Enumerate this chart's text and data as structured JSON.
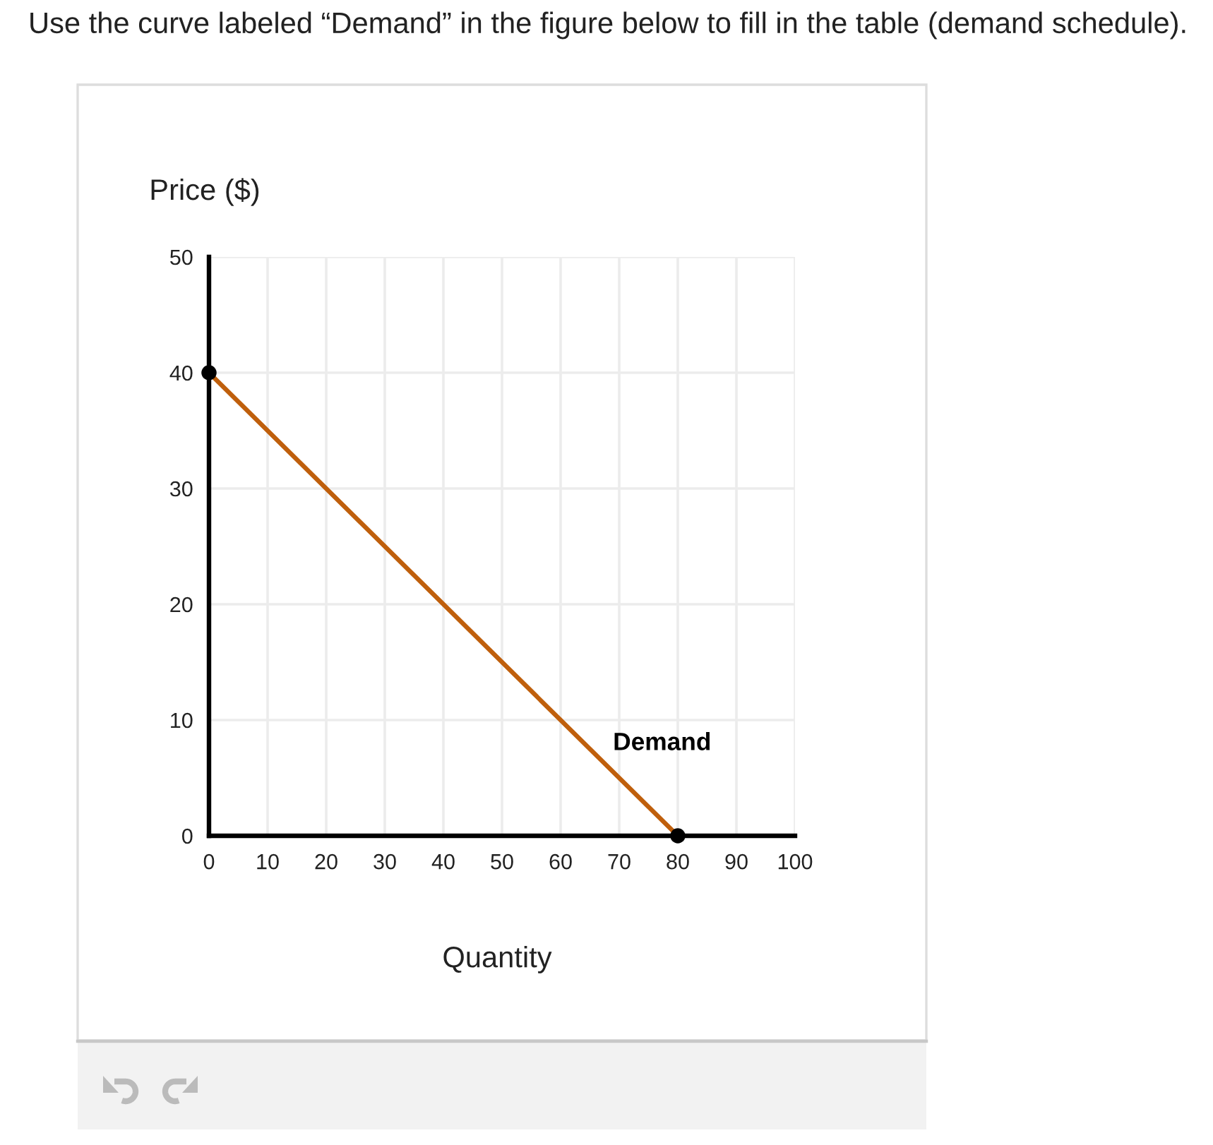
{
  "chart_data": {
    "type": "line",
    "title": "Use the curve labeled “Demand” in the figure below to fill in the table (demand schedule).",
    "xlabel": "Quantity",
    "ylabel": "Price ($)",
    "series": [
      {
        "name": "Demand",
        "color": "#bf5f0c",
        "colors": [
          "#000000",
          "#000000"
        ],
        "x": [
          0,
          80
        ],
        "values": [
          40,
          0
        ]
      }
    ],
    "xlim": [
      0,
      100
    ],
    "ylim": [
      0,
      50
    ],
    "xticks": [
      0,
      10,
      20,
      30,
      40,
      50,
      60,
      70,
      80,
      90,
      100
    ],
    "yticks": [
      0,
      10,
      20,
      30,
      40,
      50
    ],
    "grid": true,
    "marker": "circle"
  }
}
